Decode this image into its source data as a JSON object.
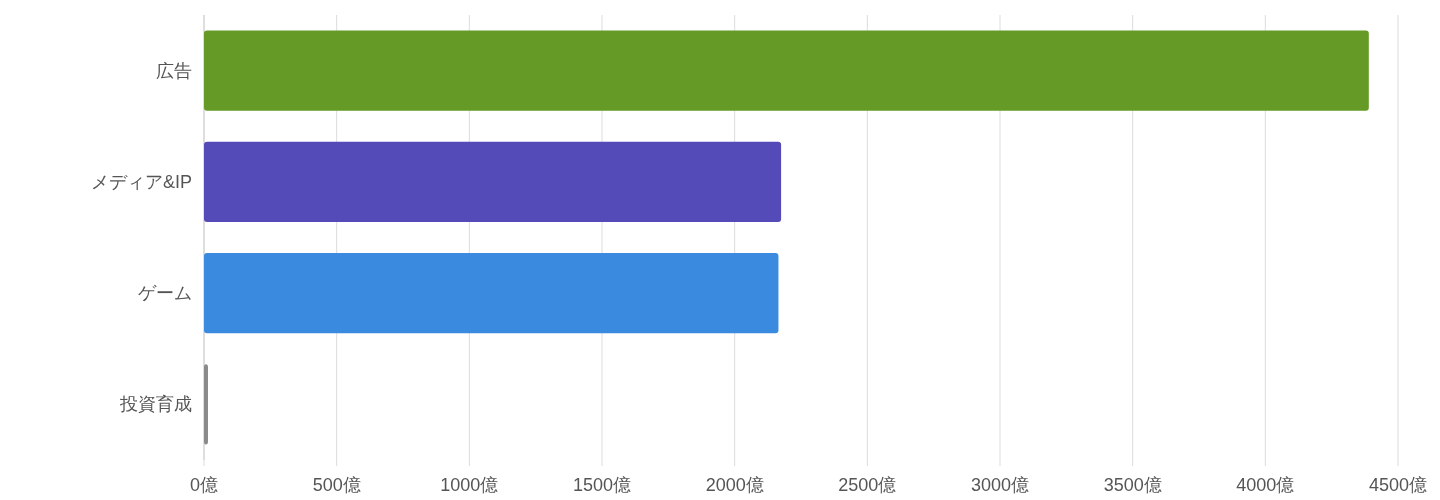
{
  "chart_data": {
    "type": "bar",
    "orientation": "horizontal",
    "categories": [
      "広告",
      "メディア&IP",
      "ゲーム",
      "投資育成"
    ],
    "values": [
      4390,
      2175,
      2165,
      15
    ],
    "colors": [
      "#659a26",
      "#544bb8",
      "#3a8bdf",
      "#8a8a8a"
    ],
    "xlim": [
      0,
      4500
    ],
    "xticks": [
      {
        "value": 0,
        "label": "0億"
      },
      {
        "value": 500,
        "label": "500億"
      },
      {
        "value": 1000,
        "label": "1000億"
      },
      {
        "value": 1500,
        "label": "1500億"
      },
      {
        "value": 2000,
        "label": "2000億"
      },
      {
        "value": 2500,
        "label": "2500億"
      },
      {
        "value": 3000,
        "label": "3000億"
      },
      {
        "value": 3500,
        "label": "3500億"
      },
      {
        "value": 4000,
        "label": "4000億"
      },
      {
        "value": 4500,
        "label": "4500億"
      }
    ],
    "grid": "x"
  }
}
